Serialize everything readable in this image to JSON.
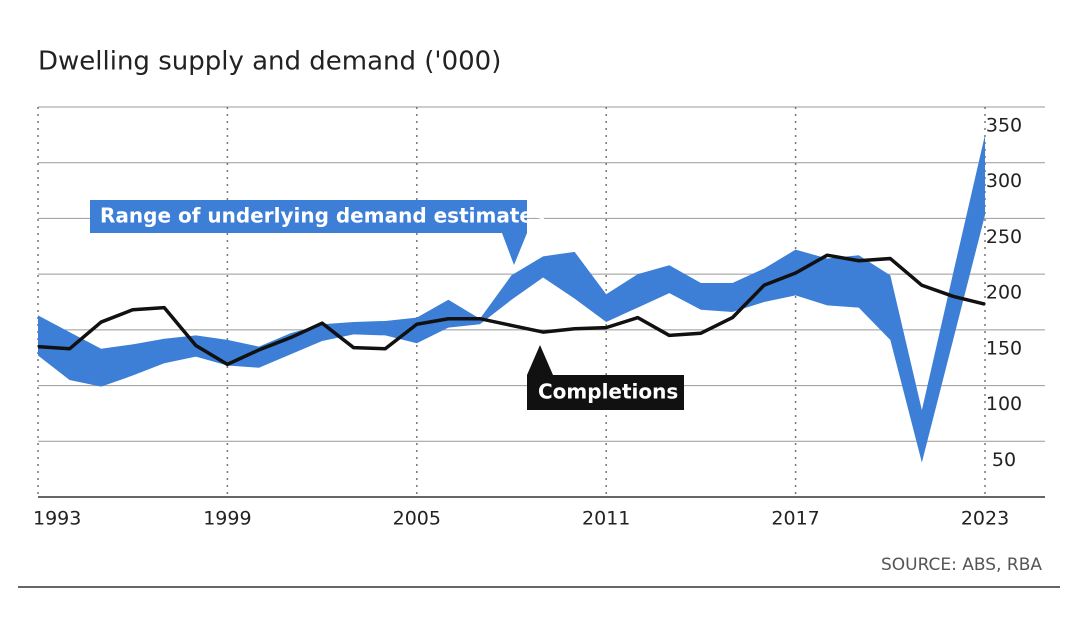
{
  "chart_data": {
    "type": "line",
    "title": "Dwelling supply and demand ('000)",
    "source": "SOURCE: ABS, RBA",
    "x": [
      1993,
      1994,
      1995,
      1996,
      1997,
      1998,
      1999,
      2000,
      2001,
      2002,
      2003,
      2004,
      2005,
      2006,
      2007,
      2008,
      2009,
      2010,
      2011,
      2012,
      2013,
      2014,
      2015,
      2016,
      2017,
      2018,
      2019,
      2020,
      2021,
      2022,
      2023
    ],
    "xlim": [
      1993,
      2023
    ],
    "xticks": [
      1993,
      1999,
      2005,
      2011,
      2017,
      2023
    ],
    "ylim": [
      0,
      350
    ],
    "yticks": [
      50,
      100,
      150,
      200,
      250,
      300,
      350
    ],
    "grid": true,
    "series": [
      {
        "name": "Range of underlying demand estimates",
        "color": "#3d7fd6",
        "low": [
          127,
          105,
          99,
          109,
          120,
          126,
          118,
          116,
          128,
          140,
          146,
          145,
          138,
          152,
          155,
          177,
          197,
          178,
          157,
          170,
          183,
          168,
          166,
          175,
          181,
          172,
          170,
          141,
          31,
          142,
          253
        ],
        "high": [
          163,
          148,
          133,
          137,
          142,
          145,
          141,
          135,
          147,
          155,
          157,
          158,
          161,
          177,
          160,
          199,
          216,
          220,
          182,
          200,
          208,
          192,
          192,
          205,
          222,
          214,
          217,
          199,
          78,
          202,
          325
        ]
      },
      {
        "name": "Completions",
        "color": "#111111",
        "values": [
          135,
          133,
          157,
          168,
          170,
          136,
          119,
          132,
          143,
          156,
          134,
          133,
          155,
          160,
          160,
          154,
          148,
          151,
          152,
          161,
          145,
          147,
          161,
          190,
          201,
          217,
          212,
          214,
          190,
          180,
          173
        ]
      }
    ]
  }
}
